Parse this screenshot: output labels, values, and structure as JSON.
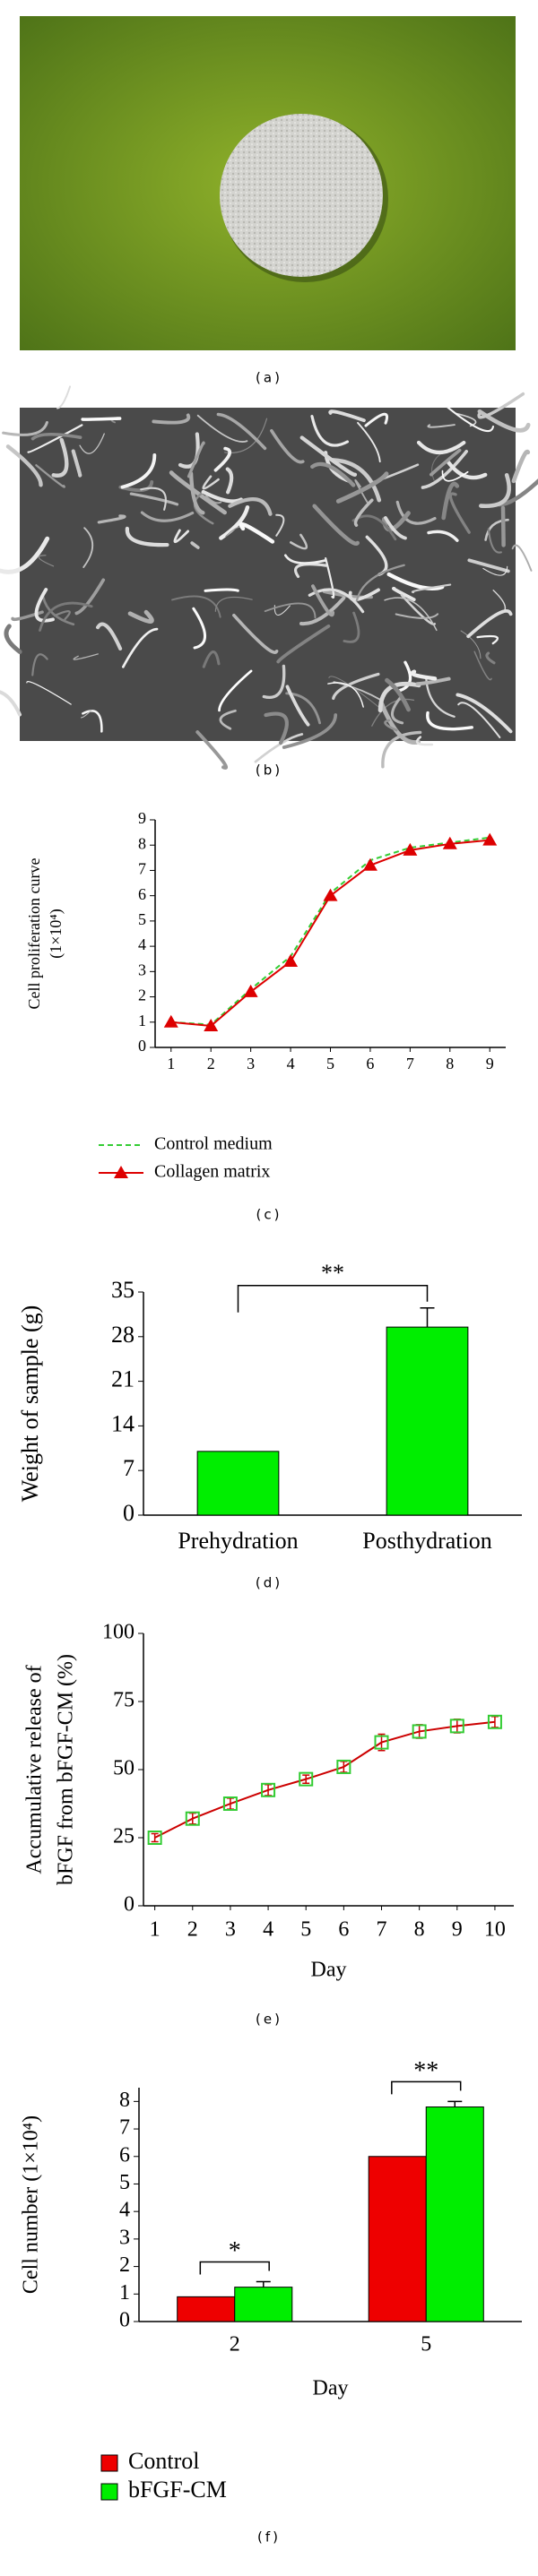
{
  "panel_labels": [
    "(a)",
    "(b)",
    "(c)",
    "(d)",
    "(e)",
    "(f)"
  ],
  "chart_data": [
    {
      "type": "line",
      "y_label": [
        "Cell proliferation curve",
        "(1×10⁴)"
      ],
      "x": [
        1,
        2,
        3,
        4,
        5,
        6,
        7,
        8,
        9
      ],
      "xlim": [
        0.6,
        9.4
      ],
      "xticks": [
        1,
        2,
        3,
        4,
        5,
        6,
        7,
        8,
        9
      ],
      "ylim": [
        0,
        9
      ],
      "yticks": [
        0,
        1,
        2,
        3,
        4,
        5,
        6,
        7,
        8,
        9
      ],
      "series": [
        {
          "name": "Control medium",
          "color": "#33cc33",
          "line_style": "dashed",
          "values": [
            1.0,
            0.9,
            2.3,
            3.6,
            6.1,
            7.4,
            7.9,
            8.1,
            8.3
          ]
        },
        {
          "name": "Collagen matrix",
          "color": "#dd0000",
          "line_style": "solid",
          "marker": "triangle",
          "values": [
            1.0,
            0.85,
            2.2,
            3.4,
            6.0,
            7.2,
            7.8,
            8.05,
            8.2
          ]
        }
      ]
    },
    {
      "type": "bar",
      "y_label": "Weight of sample (g)",
      "categories": [
        "Prehydration",
        "Posthydration"
      ],
      "values": [
        10,
        29.5
      ],
      "errors": [
        0,
        3
      ],
      "color": "#00ee00",
      "ylim": [
        0,
        35
      ],
      "yticks": [
        0,
        7,
        14,
        21,
        28,
        35
      ],
      "significance": "**"
    },
    {
      "type": "line",
      "x_label": "Day",
      "y_label": [
        "Accumulative release of",
        "bFGF from bFGF-CM (%)"
      ],
      "x": [
        1,
        2,
        3,
        4,
        5,
        6,
        7,
        8,
        9,
        10
      ],
      "xlim": [
        0.7,
        10.5
      ],
      "xticks": [
        1,
        2,
        3,
        4,
        5,
        6,
        7,
        8,
        9,
        10
      ],
      "ylim": [
        0,
        100
      ],
      "yticks": [
        0,
        25,
        50,
        75,
        100
      ],
      "values": [
        25,
        32,
        37.5,
        42.5,
        46.5,
        51,
        60,
        64,
        66,
        67.5
      ],
      "errors": [
        1.5,
        2,
        2,
        2,
        1.5,
        2,
        3,
        2.5,
        2.5,
        2
      ],
      "color": "#cc0000",
      "line_style": "solid",
      "marker": "square",
      "marker_color": "#33cc33"
    },
    {
      "type": "bar",
      "x_label": "Day",
      "y_label": "Cell number (1×10⁴)",
      "categories": [
        "2",
        "5"
      ],
      "ylim": [
        0,
        8.5
      ],
      "yticks": [
        0,
        1,
        2,
        3,
        4,
        5,
        6,
        7,
        8
      ],
      "series": [
        {
          "name": "Control",
          "color": "#ee0000",
          "values": [
            0.9,
            6.0
          ],
          "errors": [
            0,
            0
          ]
        },
        {
          "name": "bFGF-CM",
          "color": "#00ee00",
          "values": [
            1.25,
            7.8
          ],
          "errors": [
            0.2,
            0.2
          ]
        }
      ],
      "significance": [
        "*",
        "**"
      ]
    }
  ]
}
